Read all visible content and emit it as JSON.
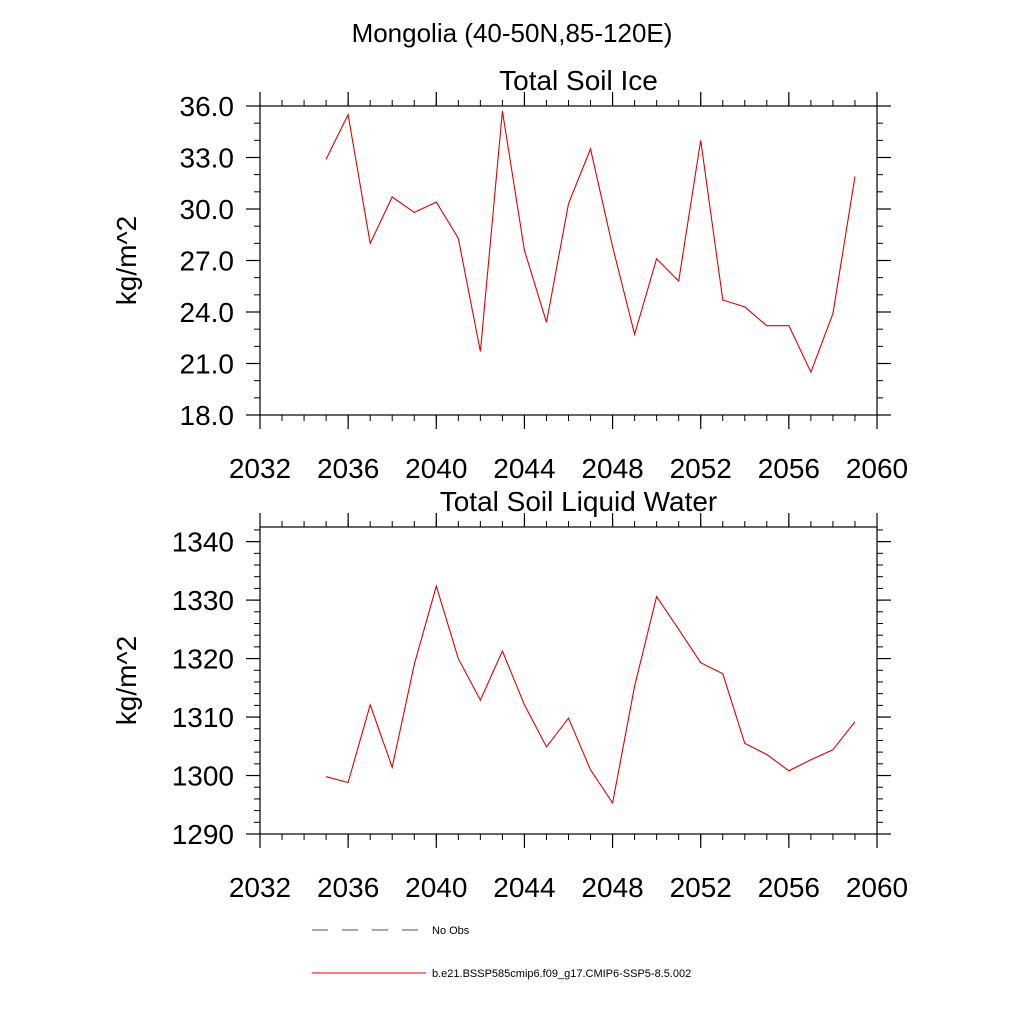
{
  "figure_title": "Mongolia (40-50N,85-120E)",
  "legend": [
    {
      "label": "No Obs",
      "color": "#4a4a8a",
      "dash": "dashed"
    },
    {
      "label": "b.e21.BSSP585cmip6.f09_g17.CMIP6-SSP5-8.5.002",
      "color": "#e00000",
      "dash": "solid"
    }
  ],
  "chart_data": [
    {
      "type": "line",
      "title": "Total Soil Ice",
      "ylabel": "kg/m^2",
      "xlabel": "",
      "xlim": [
        2032,
        2060
      ],
      "ylim": [
        18,
        36
      ],
      "xticks": [
        2032,
        2036,
        2040,
        2044,
        2048,
        2052,
        2056,
        2060
      ],
      "xtick_labels": [
        "2032",
        "2036",
        "2040",
        "2044",
        "2048",
        "2052",
        "2056",
        "2060"
      ],
      "yticks": [
        18,
        21,
        24,
        27,
        30,
        33,
        36
      ],
      "ytick_labels": [
        "18.0",
        "21.0",
        "24.0",
        "27.0",
        "30.0",
        "33.0",
        "36.0"
      ],
      "y_minor_step": 1,
      "x_minor_step": 1,
      "grid": false,
      "series": [
        {
          "name": "b.e21.BSSP585cmip6.f09_g17.CMIP6-SSP5-8.5.002",
          "color": "#e00000",
          "x": [
            2035,
            2036,
            2037,
            2038,
            2039,
            2040,
            2041,
            2042,
            2043,
            2044,
            2045,
            2046,
            2047,
            2048,
            2049,
            2050,
            2051,
            2052,
            2053,
            2054,
            2055,
            2056,
            2057,
            2058,
            2059
          ],
          "y": [
            32.9,
            35.5,
            28.0,
            30.7,
            29.8,
            30.4,
            28.3,
            21.7,
            35.7,
            27.6,
            23.4,
            30.3,
            33.5,
            27.8,
            22.7,
            27.1,
            25.8,
            34.0,
            24.7,
            24.3,
            23.2,
            23.2,
            20.5,
            23.9,
            31.9
          ]
        }
      ]
    },
    {
      "type": "line",
      "title": "Total Soil Liquid Water",
      "ylabel": "kg/m^2",
      "xlabel": "",
      "xlim": [
        2032,
        2060
      ],
      "ylim": [
        1290,
        1342.5
      ],
      "xticks": [
        2032,
        2036,
        2040,
        2044,
        2048,
        2052,
        2056,
        2060
      ],
      "xtick_labels": [
        "2032",
        "2036",
        "2040",
        "2044",
        "2048",
        "2052",
        "2056",
        "2060"
      ],
      "yticks": [
        1290,
        1300,
        1310,
        1320,
        1330,
        1340
      ],
      "ytick_labels": [
        "1290",
        "1300",
        "1310",
        "1320",
        "1330",
        "1340"
      ],
      "y_minor_step": 2,
      "x_minor_step": 1,
      "grid": false,
      "series": [
        {
          "name": "b.e21.BSSP585cmip6.f09_g17.CMIP6-SSP5-8.5.002",
          "color": "#e00000",
          "x": [
            2035,
            2036,
            2037,
            2038,
            2039,
            2040,
            2041,
            2042,
            2043,
            2044,
            2045,
            2046,
            2047,
            2048,
            2049,
            2050,
            2051,
            2052,
            2053,
            2054,
            2055,
            2056,
            2057,
            2058,
            2059
          ],
          "y": [
            1299.8,
            1298.8,
            1312.1,
            1301.4,
            1319.0,
            1332.4,
            1320.0,
            1312.9,
            1321.3,
            1312.1,
            1304.9,
            1309.8,
            1301.0,
            1295.3,
            1315.3,
            1330.6,
            1325.0,
            1319.3,
            1317.4,
            1305.5,
            1303.6,
            1300.8,
            1302.7,
            1304.4,
            1309.2
          ]
        }
      ]
    }
  ]
}
